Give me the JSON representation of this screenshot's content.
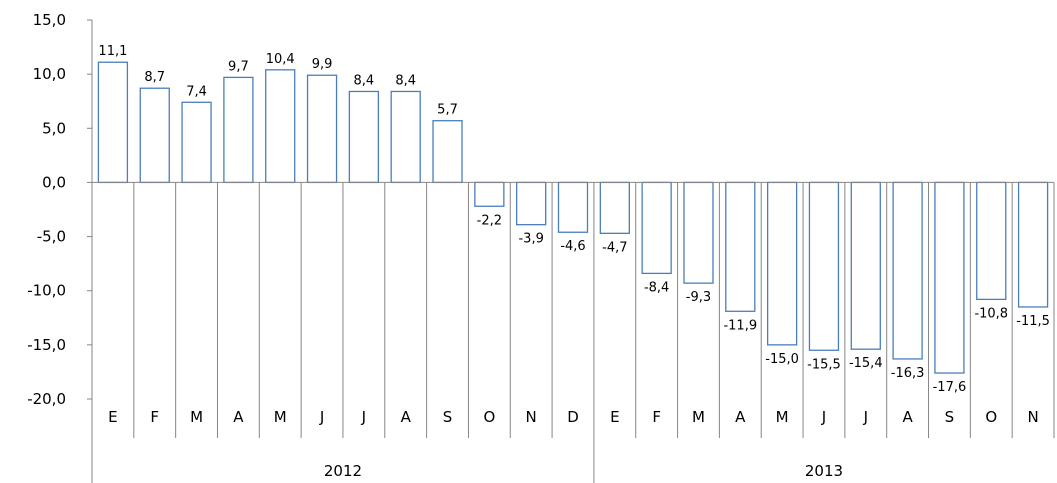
{
  "chart_data": {
    "type": "bar",
    "title": "",
    "xlabel": "",
    "ylabel": "",
    "ylim": [
      -20,
      15
    ],
    "y_ticks": [
      "15,0",
      "10,0",
      "5,0",
      "0,0",
      "-5,0",
      "-10,0",
      "-15,0",
      "-20,0"
    ],
    "y_tick_values": [
      15,
      10,
      5,
      0,
      -5,
      -10,
      -15,
      -20
    ],
    "categories": [
      "E",
      "F",
      "M",
      "A",
      "M",
      "J",
      "J",
      "A",
      "S",
      "O",
      "N",
      "D",
      "E",
      "F",
      "M",
      "A",
      "M",
      "J",
      "J",
      "A",
      "S",
      "O",
      "N"
    ],
    "values": [
      11.1,
      8.7,
      7.4,
      9.7,
      10.4,
      9.9,
      8.4,
      8.4,
      5.7,
      -2.2,
      -3.9,
      -4.6,
      -4.7,
      -8.4,
      -9.3,
      -11.9,
      -15.0,
      -15.5,
      -15.4,
      -16.3,
      -17.6,
      -10.8,
      -11.5
    ],
    "data_labels": [
      "11,1",
      "8,7",
      "7,4",
      "9,7",
      "10,4",
      "9,9",
      "8,4",
      "8,4",
      "5,7",
      "-2,2",
      "-3,9",
      "-4,6",
      "-4,7",
      "-8,4",
      "-9,3",
      "-11,9",
      "-15,0",
      "-15,5",
      "-15,4",
      "-16,3",
      "-17,6",
      "-10,8",
      "-11,5"
    ],
    "groups": [
      {
        "label": "2012",
        "count": 12
      },
      {
        "label": "2013",
        "count": 11
      }
    ],
    "grid": false,
    "legend": "none",
    "bar_color": "#4a7ebb",
    "bar_fill": "#ffffff"
  }
}
